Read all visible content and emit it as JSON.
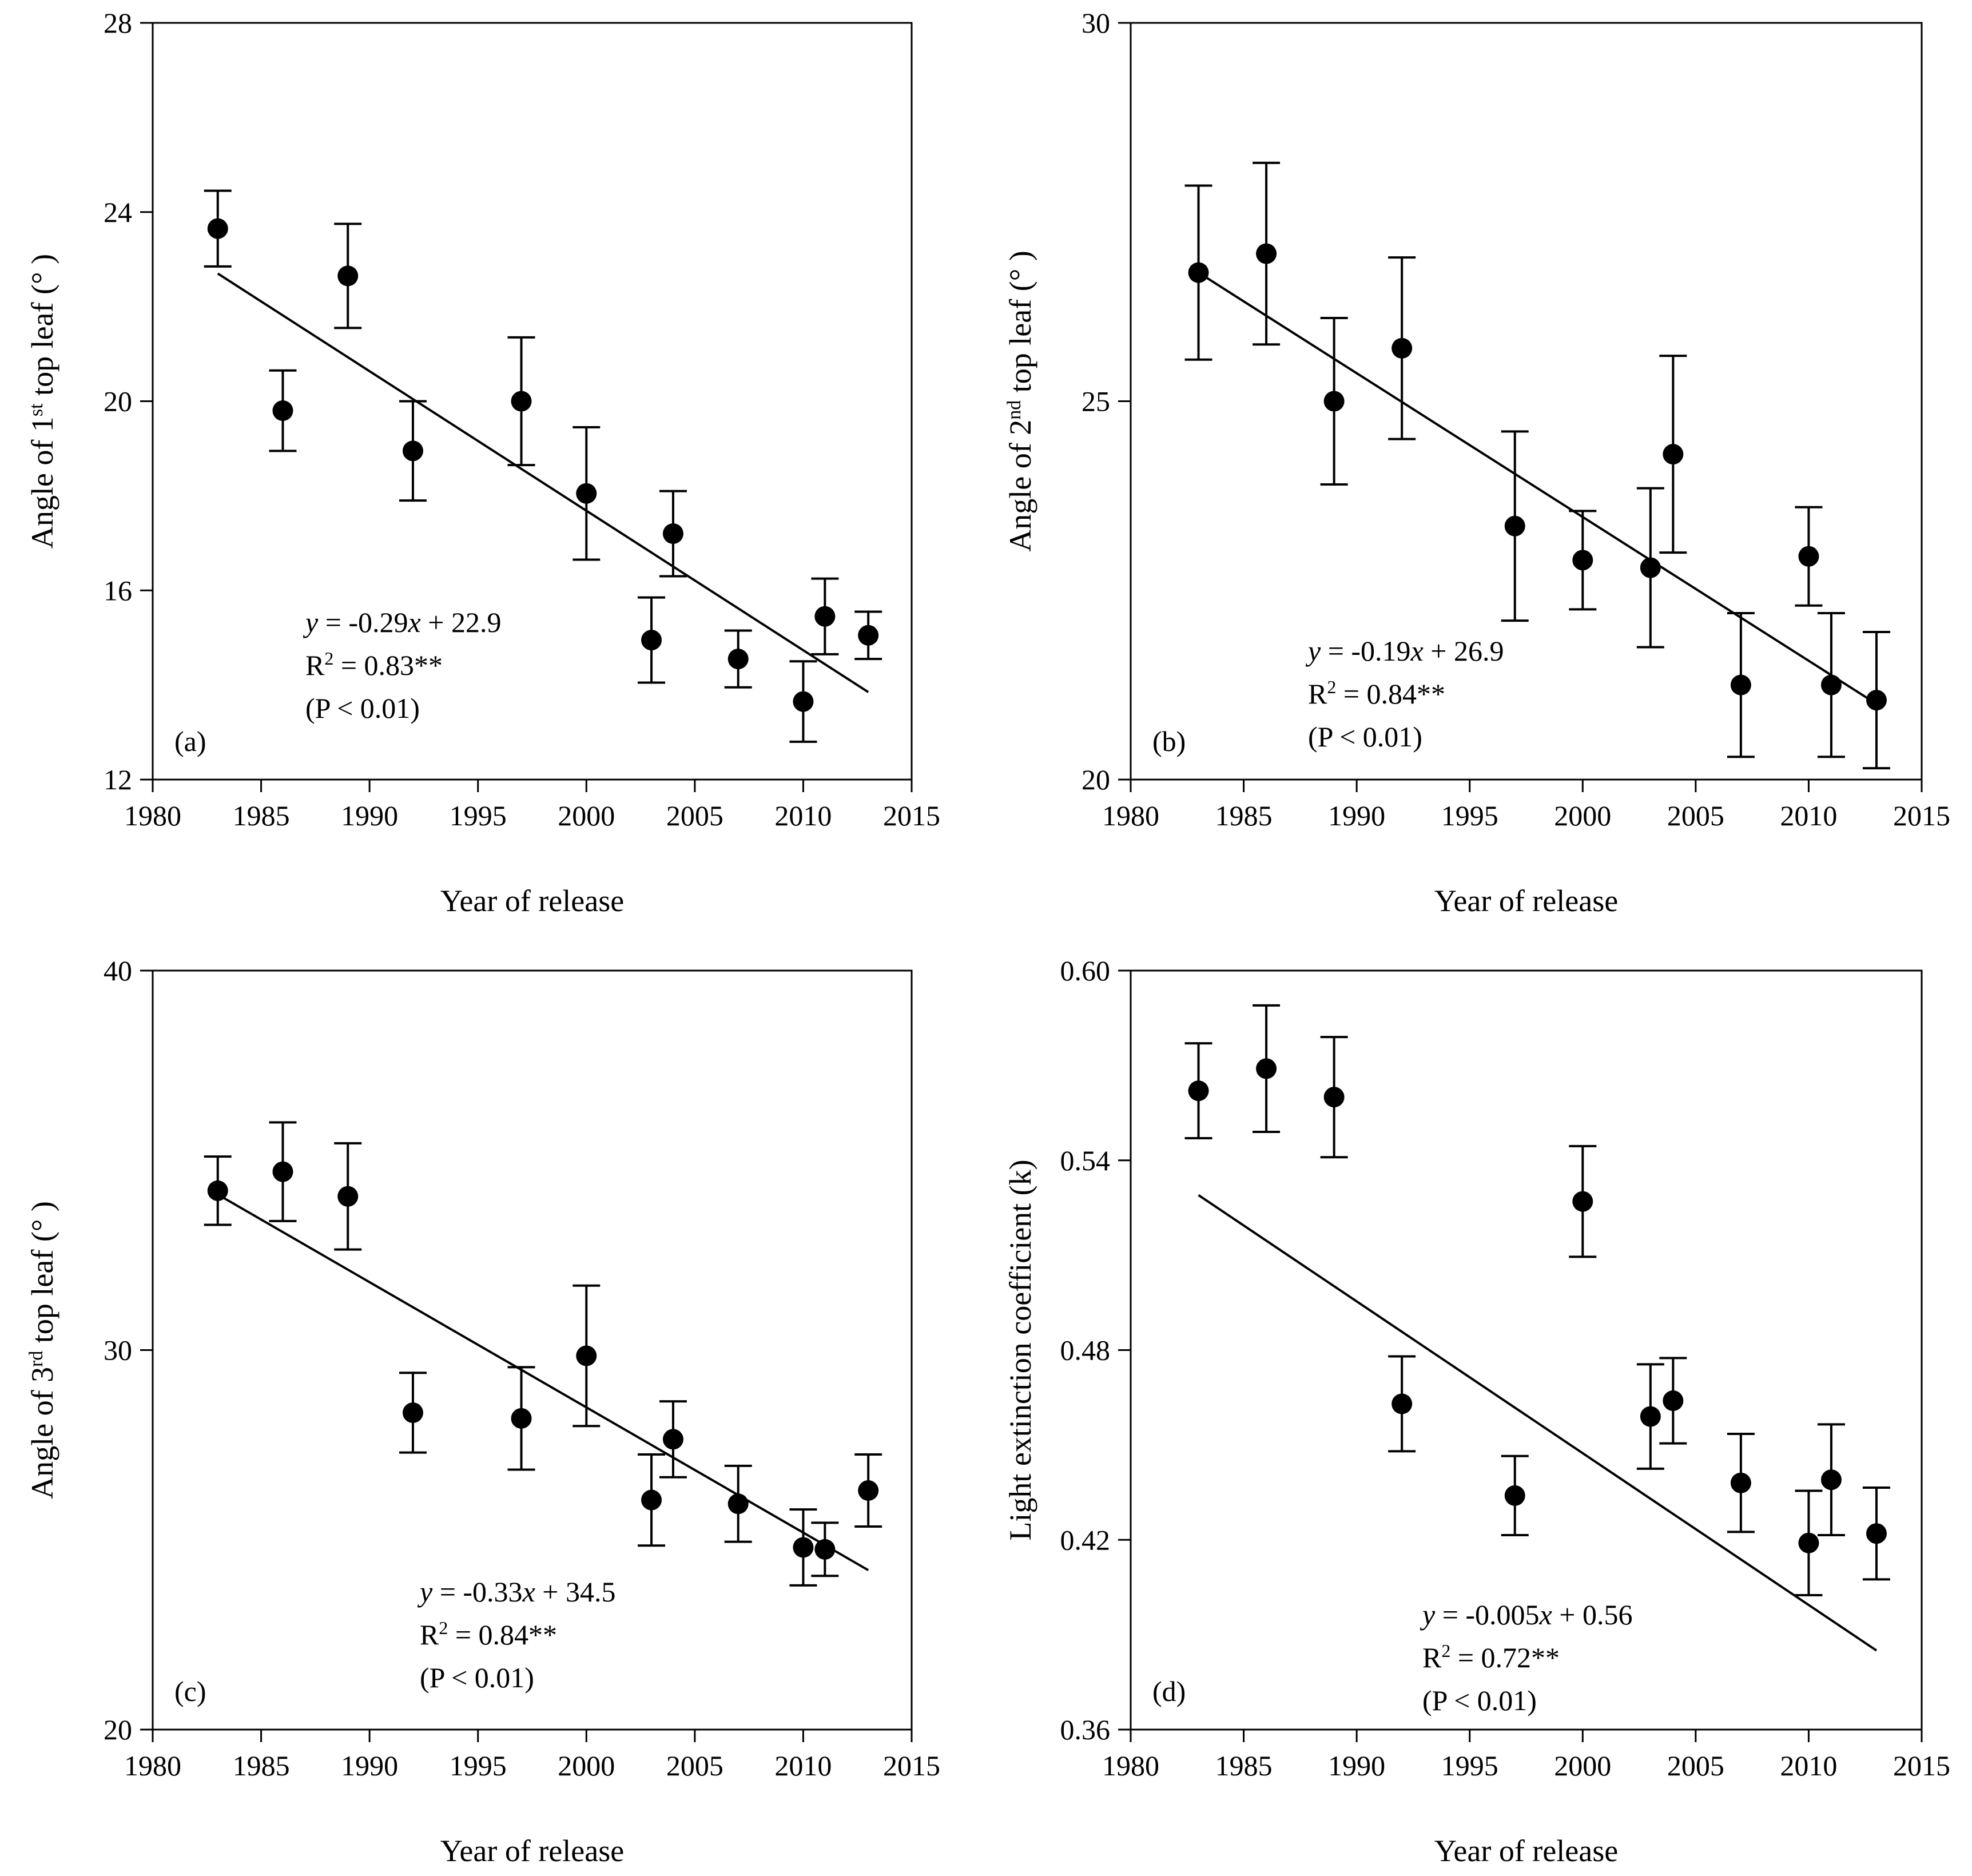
{
  "chart_data": [
    {
      "type": "scatter",
      "panel_label": "(a)",
      "xlabel": "Year of release",
      "ylabel": {
        "prefix": "Angle of 1",
        "sup": "st",
        "suffix": " top leaf (° )"
      },
      "xlim": [
        1980,
        2015
      ],
      "ylim": [
        12,
        28
      ],
      "xticks": [
        1980,
        1985,
        1990,
        1995,
        2000,
        2005,
        2010,
        2015
      ],
      "yticks": [
        12,
        16,
        20,
        24,
        28
      ],
      "ytick_labels": [
        "12",
        "16",
        "20",
        "24",
        "28"
      ],
      "points": [
        {
          "x": 1983,
          "y": 23.65,
          "err": 0.8
        },
        {
          "x": 1986,
          "y": 19.8,
          "err": 0.85
        },
        {
          "x": 1989,
          "y": 22.65,
          "err": 1.1
        },
        {
          "x": 1992,
          "y": 18.95,
          "err": 1.05
        },
        {
          "x": 1997,
          "y": 20.0,
          "err": 1.35
        },
        {
          "x": 2000,
          "y": 18.05,
          "err": 1.4
        },
        {
          "x": 2003,
          "y": 14.95,
          "err": 0.9
        },
        {
          "x": 2004,
          "y": 17.2,
          "err": 0.9
        },
        {
          "x": 2007,
          "y": 14.55,
          "err": 0.6
        },
        {
          "x": 2010,
          "y": 13.65,
          "err": 0.85
        },
        {
          "x": 2011,
          "y": 15.45,
          "err": 0.8
        },
        {
          "x": 2013,
          "y": 15.05,
          "err": 0.5
        }
      ],
      "regression_line": {
        "x": [
          1983,
          2013
        ],
        "y": [
          22.7,
          13.85
        ]
      },
      "equation": {
        "pre": "y",
        "coef": " = -0.29",
        "var": "x",
        "post": " + 22.9"
      },
      "r2": {
        "pre": "R",
        "sup": "2",
        "post": " = 0.83**"
      },
      "p_value": "(P < 0.01)"
    },
    {
      "type": "scatter",
      "panel_label": "(b)",
      "xlabel": "Year of release",
      "ylabel": {
        "prefix": "Angle of 2",
        "sup": "nd",
        "suffix": " top leaf (° )"
      },
      "xlim": [
        1980,
        2015
      ],
      "ylim": [
        20,
        30
      ],
      "xticks": [
        1980,
        1985,
        1990,
        1995,
        2000,
        2005,
        2010,
        2015
      ],
      "yticks": [
        20,
        25,
        30
      ],
      "ytick_labels": [
        "20",
        "25",
        "30"
      ],
      "points": [
        {
          "x": 1983,
          "y": 26.7,
          "err": 1.15
        },
        {
          "x": 1986,
          "y": 26.95,
          "err": 1.2
        },
        {
          "x": 1989,
          "y": 25.0,
          "err": 1.1
        },
        {
          "x": 1992,
          "y": 25.7,
          "err": 1.2
        },
        {
          "x": 1997,
          "y": 23.35,
          "err": 1.25
        },
        {
          "x": 2000,
          "y": 22.9,
          "err": 0.65
        },
        {
          "x": 2003,
          "y": 22.8,
          "err": 1.05
        },
        {
          "x": 2004,
          "y": 24.3,
          "err": 1.3
        },
        {
          "x": 2007,
          "y": 21.25,
          "err": 0.95
        },
        {
          "x": 2010,
          "y": 22.95,
          "err": 0.65
        },
        {
          "x": 2011,
          "y": 21.25,
          "err": 0.95
        },
        {
          "x": 2013,
          "y": 21.05,
          "err": 0.9
        }
      ],
      "regression_line": {
        "x": [
          1983,
          2013
        ],
        "y": [
          26.7,
          21.0
        ]
      },
      "equation": {
        "pre": "y",
        "coef": " = -0.19",
        "var": "x",
        "post": " + 26.9"
      },
      "r2": {
        "pre": "R",
        "sup": "2",
        "post": " = 0.84**"
      },
      "p_value": "(P < 0.01)"
    },
    {
      "type": "scatter",
      "panel_label": "(c)",
      "xlabel": "Year of release",
      "ylabel": {
        "prefix": "Angle of 3",
        "sup": "rd",
        "suffix": " top leaf (° )"
      },
      "xlim": [
        1980,
        2015
      ],
      "ylim": [
        20,
        40
      ],
      "xticks": [
        1980,
        1985,
        1990,
        1995,
        2000,
        2005,
        2010,
        2015
      ],
      "yticks": [
        20,
        30,
        40
      ],
      "ytick_labels": [
        "20",
        "30",
        "40"
      ],
      "points": [
        {
          "x": 1983,
          "y": 34.2,
          "err": 0.9
        },
        {
          "x": 1986,
          "y": 34.7,
          "err": 1.3
        },
        {
          "x": 1989,
          "y": 34.05,
          "err": 1.4
        },
        {
          "x": 1992,
          "y": 28.35,
          "err": 1.05
        },
        {
          "x": 1997,
          "y": 28.2,
          "err": 1.35
        },
        {
          "x": 2000,
          "y": 29.85,
          "err": 1.85
        },
        {
          "x": 2003,
          "y": 26.05,
          "err": 1.2
        },
        {
          "x": 2004,
          "y": 27.65,
          "err": 1.0
        },
        {
          "x": 2007,
          "y": 25.95,
          "err": 1.0
        },
        {
          "x": 2010,
          "y": 24.8,
          "err": 1.0
        },
        {
          "x": 2011,
          "y": 24.75,
          "err": 0.7
        },
        {
          "x": 2013,
          "y": 26.3,
          "err": 0.95
        }
      ],
      "regression_line": {
        "x": [
          1983,
          2013
        ],
        "y": [
          34.1,
          24.2
        ]
      },
      "equation": {
        "pre": "y",
        "coef": " = -0.33",
        "var": "x",
        "post": " + 34.5"
      },
      "r2": {
        "pre": "R",
        "sup": "2",
        "post": " = 0.84**"
      },
      "p_value": "(P < 0.01)"
    },
    {
      "type": "scatter",
      "panel_label": "(d)",
      "xlabel": "Year of release",
      "ylabel": {
        "prefix": "Light extinction coefficient (k)",
        "sup": "",
        "suffix": ""
      },
      "xlim": [
        1980,
        2015
      ],
      "ylim": [
        0.36,
        0.6
      ],
      "xticks": [
        1980,
        1985,
        1990,
        1995,
        2000,
        2005,
        2010,
        2015
      ],
      "yticks": [
        0.36,
        0.42,
        0.48,
        0.54,
        0.6
      ],
      "ytick_labels": [
        "0.36",
        "0.42",
        "0.48",
        "0.54",
        "0.60"
      ],
      "points": [
        {
          "x": 1983,
          "y": 0.562,
          "err": 0.015
        },
        {
          "x": 1986,
          "y": 0.569,
          "err": 0.02
        },
        {
          "x": 1989,
          "y": 0.56,
          "err": 0.019
        },
        {
          "x": 1992,
          "y": 0.463,
          "err": 0.015
        },
        {
          "x": 1997,
          "y": 0.434,
          "err": 0.0125
        },
        {
          "x": 2000,
          "y": 0.527,
          "err": 0.0175
        },
        {
          "x": 2003,
          "y": 0.459,
          "err": 0.0165
        },
        {
          "x": 2004,
          "y": 0.464,
          "err": 0.0135
        },
        {
          "x": 2007,
          "y": 0.438,
          "err": 0.0155
        },
        {
          "x": 2010,
          "y": 0.419,
          "err": 0.0165
        },
        {
          "x": 2011,
          "y": 0.439,
          "err": 0.0175
        },
        {
          "x": 2013,
          "y": 0.422,
          "err": 0.0145
        }
      ],
      "regression_line": {
        "x": [
          1983,
          2013
        ],
        "y": [
          0.529,
          0.385
        ]
      },
      "equation": {
        "pre": "y",
        "coef": " = -0.005",
        "var": "x",
        "post": " + 0.56"
      },
      "r2": {
        "pre": "R",
        "sup": "2",
        "post": " = 0.72**"
      },
      "p_value": "(P < 0.01)"
    }
  ]
}
